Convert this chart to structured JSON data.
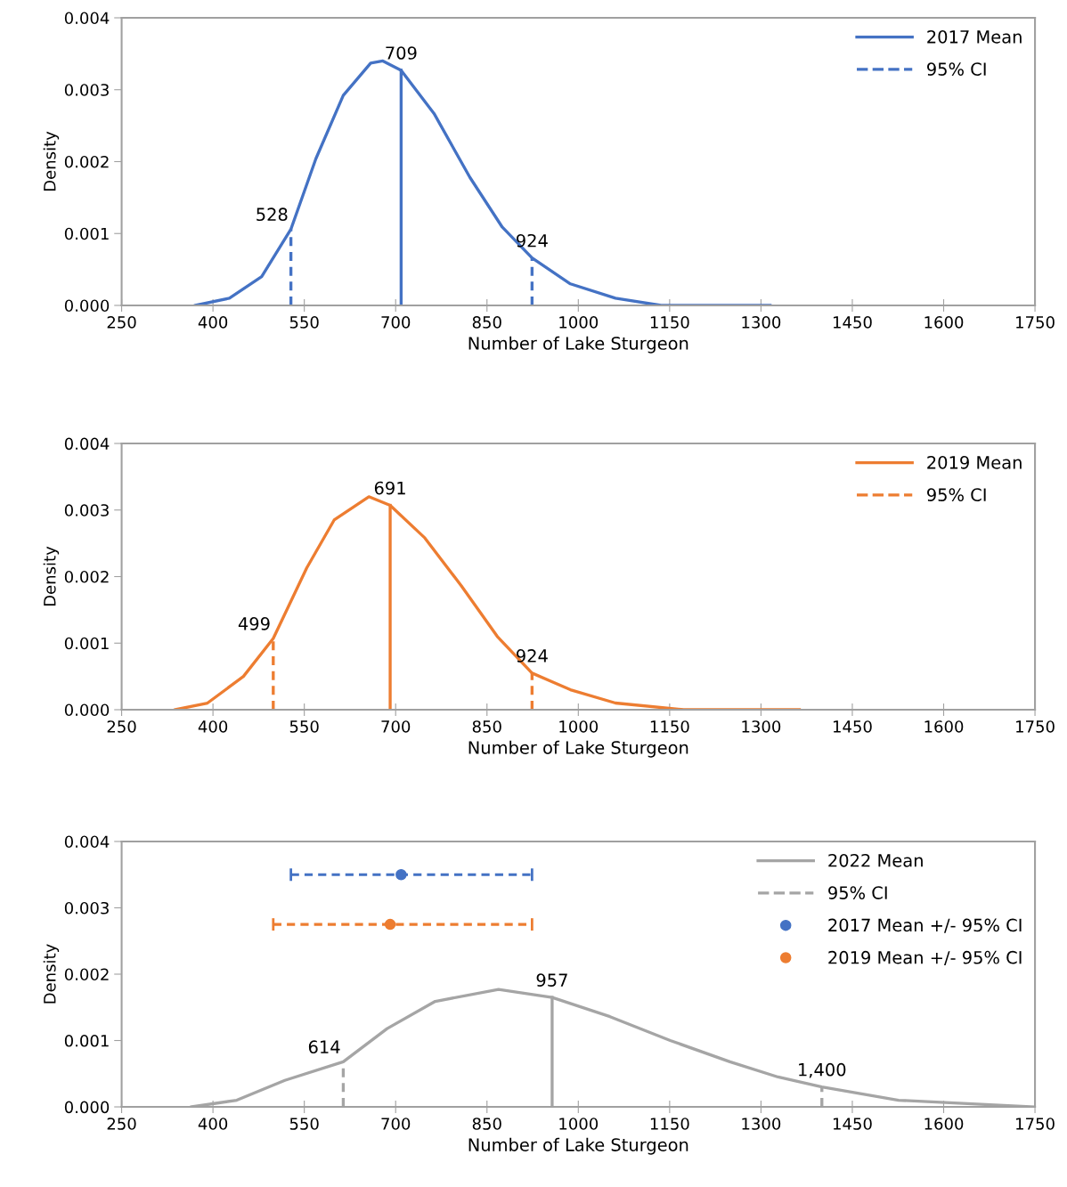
{
  "chart_data": [
    {
      "type": "line",
      "xlabel": "Number of Lake Sturgeon",
      "ylabel": "Density",
      "xlim": [
        250,
        1750
      ],
      "xticks": [
        250,
        400,
        550,
        700,
        850,
        1000,
        1150,
        1300,
        1450,
        1600,
        1750
      ],
      "ylim": [
        0,
        0.004
      ],
      "yticks": [
        {
          "value": 0,
          "label": "0.000"
        },
        {
          "value": 0.001,
          "label": "0.001"
        },
        {
          "value": 0.002,
          "label": "0.002"
        },
        {
          "value": 0.003,
          "label": "0.003"
        },
        {
          "value": 0.004,
          "label": "0.004"
        }
      ],
      "grid": false,
      "legend": "top right",
      "series": [
        {
          "color": "#4472c4",
          "line_style": "solid",
          "marker": "none",
          "x": [
            371,
            427,
            480,
            528,
            569,
            614,
            659,
            679,
            709,
            763,
            822,
            875,
            924,
            987,
            1061,
            1136,
            1315
          ],
          "values": [
            0,
            0.0001,
            0.0004,
            0.00106,
            0.00204,
            0.00292,
            0.00337,
            0.0034,
            0.00327,
            0.00267,
            0.00178,
            0.00109,
            0.00066,
            0.0003,
            0.0001,
            0,
            0
          ]
        },
        {
          "name": "2017 Mean",
          "color": "#4472c4",
          "line_style": "solid",
          "marker": "none",
          "x": [
            709,
            709
          ],
          "values": [
            0,
            0.00327
          ]
        },
        {
          "name": "95% CI",
          "color": "#4472c4",
          "line_style": "dashed",
          "marker": "none",
          "x": [
            528,
            528,
            null,
            924,
            924
          ],
          "values": [
            0,
            0.00106,
            null,
            0,
            0.00066
          ]
        }
      ],
      "annotations": [
        {
          "text": "709",
          "x": 709,
          "y": 0.00327
        },
        {
          "text": "528",
          "x": 528,
          "y": 0.00106
        },
        {
          "text": "924",
          "x": 924,
          "y": 0.00066
        }
      ]
    },
    {
      "type": "line",
      "xlabel": "Number of Lake Sturgeon",
      "ylabel": "Density",
      "xlim": [
        250,
        1750
      ],
      "xticks": [
        250,
        400,
        550,
        700,
        850,
        1000,
        1150,
        1300,
        1450,
        1600,
        1750
      ],
      "ylim": [
        0,
        0.004
      ],
      "yticks": [
        {
          "value": 0,
          "label": "0.000"
        },
        {
          "value": 0.001,
          "label": "0.001"
        },
        {
          "value": 0.002,
          "label": "0.002"
        },
        {
          "value": 0.003,
          "label": "0.003"
        },
        {
          "value": 0.004,
          "label": "0.004"
        }
      ],
      "grid": false,
      "legend": "top right",
      "series": [
        {
          "color": "#ed7d31",
          "line_style": "solid",
          "marker": "none",
          "x": [
            338,
            391,
            450,
            499,
            554,
            599,
            656,
            691,
            748,
            808,
            867,
            924,
            987,
            1061,
            1173,
            1363
          ],
          "values": [
            0,
            0.0001,
            0.0005,
            0.00107,
            0.00213,
            0.00285,
            0.0032,
            0.00307,
            0.00258,
            0.00186,
            0.0011,
            0.00055,
            0.0003,
            0.0001,
            0,
            0
          ]
        },
        {
          "name": "2019 Mean",
          "color": "#ed7d31",
          "line_style": "solid",
          "marker": "none",
          "x": [
            691,
            691
          ],
          "values": [
            0,
            0.00307
          ]
        },
        {
          "name": "95% CI",
          "color": "#ed7d31",
          "line_style": "dashed",
          "marker": "none",
          "x": [
            499,
            499,
            null,
            924,
            924
          ],
          "values": [
            0,
            0.00107,
            null,
            0,
            0.00055
          ]
        }
      ],
      "annotations": [
        {
          "text": "691",
          "x": 691,
          "y": 0.00307
        },
        {
          "text": "499",
          "x": 499,
          "y": 0.00107
        },
        {
          "text": "924",
          "x": 924,
          "y": 0.00055
        }
      ]
    },
    {
      "type": "line",
      "xlabel": "Number of Lake Sturgeon",
      "ylabel": "Density",
      "xlim": [
        250,
        1750
      ],
      "xticks": [
        250,
        400,
        550,
        700,
        850,
        1000,
        1150,
        1300,
        1450,
        1600,
        1750
      ],
      "ylim": [
        0,
        0.004
      ],
      "yticks": [
        {
          "value": 0,
          "label": "0.000"
        },
        {
          "value": 0.001,
          "label": "0.001"
        },
        {
          "value": 0.002,
          "label": "0.002"
        },
        {
          "value": 0.003,
          "label": "0.003"
        },
        {
          "value": 0.004,
          "label": "0.004"
        }
      ],
      "grid": false,
      "legend": "top right",
      "series": [
        {
          "color": "#a5a5a5",
          "line_style": "solid",
          "marker": "none",
          "x": [
            365,
            439,
            518,
            614,
            686,
            765,
            869,
            957,
            1052,
            1151,
            1249,
            1328,
            1400,
            1526,
            1748
          ],
          "values": [
            0,
            0.0001,
            0.0004,
            0.00068,
            0.00118,
            0.00159,
            0.00177,
            0.00165,
            0.00136,
            0.001,
            0.00068,
            0.00045,
            0.0003,
            0.0001,
            0
          ]
        },
        {
          "name": "2022 Mean",
          "color": "#a5a5a5",
          "line_style": "solid",
          "marker": "none",
          "x": [
            957,
            957
          ],
          "values": [
            0,
            0.00165
          ]
        },
        {
          "name": "95% CI",
          "color": "#a5a5a5",
          "line_style": "dashed",
          "marker": "none",
          "x": [
            614,
            614,
            null,
            1400,
            1400
          ],
          "values": [
            0,
            0.00068,
            null,
            0,
            0.0003
          ]
        },
        {
          "type": "scatter",
          "name": "2017 Mean +/- 95% CI",
          "color": "#4472c4",
          "marker": "circle",
          "line_style": "dashed",
          "x": [
            709
          ],
          "values": [
            0.0035
          ],
          "xerrors": [
            [
              528,
              924
            ]
          ]
        },
        {
          "type": "scatter",
          "name": "2019 Mean +/- 95% CI",
          "color": "#ed7d31",
          "marker": "circle",
          "line_style": "dashed",
          "x": [
            691
          ],
          "values": [
            0.00275
          ],
          "xerrors": [
            [
              499,
              924
            ]
          ]
        }
      ],
      "annotations": [
        {
          "text": "957",
          "x": 957,
          "y": 0.00165
        },
        {
          "text": "614",
          "x": 614,
          "y": 0.00068
        },
        {
          "text": "1,400",
          "x": 1400,
          "y": 0.0003
        }
      ]
    }
  ]
}
